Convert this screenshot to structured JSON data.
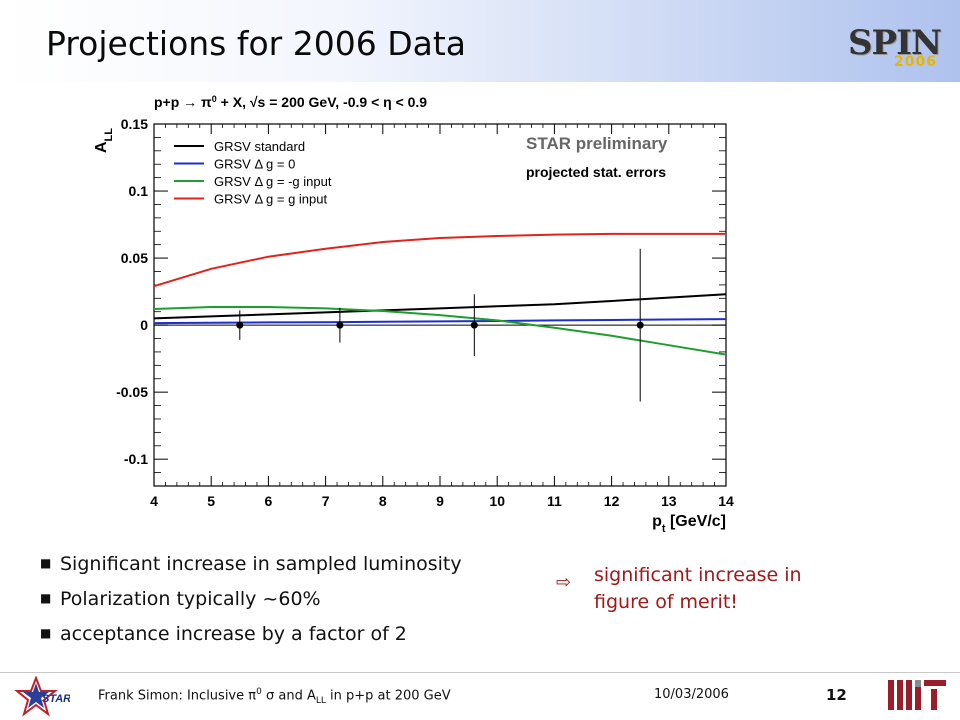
{
  "slide": {
    "title": "Projections for 2006 Data",
    "logo": {
      "word": "SPIN",
      "year": "2006"
    }
  },
  "chart_data": {
    "type": "line",
    "title": "p+p → π0 + X, √s = 200 GeV, -0.9 < η < 0.9",
    "xlabel": "pt [GeV/c]",
    "ylabel": "ALL",
    "xlim": [
      4,
      14
    ],
    "ylim": [
      -0.12,
      0.15
    ],
    "xticks": [
      "4",
      "5",
      "6",
      "7",
      "8",
      "9",
      "10",
      "11",
      "12",
      "13",
      "14"
    ],
    "yticks": [
      "-0.1",
      "-0.05",
      "0",
      "0.05",
      "0.1",
      "0.15"
    ],
    "annotations": [
      "STAR preliminary",
      "projected stat. errors"
    ],
    "legend_position": "top-left",
    "series": [
      {
        "name": "GRSV standard",
        "color": "#000000",
        "x": [
          4,
          5,
          6,
          7,
          8,
          9,
          10,
          11,
          12,
          13,
          14
        ],
        "y": [
          0.005,
          0.0065,
          0.008,
          0.0095,
          0.011,
          0.0125,
          0.014,
          0.0155,
          0.018,
          0.0205,
          0.023
        ]
      },
      {
        "name": "GRSV Δ g = 0",
        "color": "#1d2fc9",
        "x": [
          4,
          5,
          6,
          7,
          8,
          9,
          10,
          11,
          12,
          13,
          14
        ],
        "y": [
          0.0015,
          0.0017,
          0.002,
          0.0022,
          0.0025,
          0.0028,
          0.0031,
          0.0035,
          0.0038,
          0.0042,
          0.0045
        ]
      },
      {
        "name": "GRSV Δ g = -g input",
        "color": "#1e9e2e",
        "x": [
          4,
          5,
          6,
          7,
          8,
          9,
          10,
          11,
          12,
          13,
          14
        ],
        "y": [
          0.012,
          0.0135,
          0.0135,
          0.0125,
          0.0105,
          0.0075,
          0.0035,
          -0.002,
          -0.008,
          -0.015,
          -0.022
        ]
      },
      {
        "name": "GRSV Δ g = g input",
        "color": "#e0241a",
        "x": [
          4,
          5,
          6,
          7,
          8,
          9,
          10,
          11,
          12,
          13,
          14
        ],
        "y": [
          0.029,
          0.042,
          0.051,
          0.057,
          0.062,
          0.065,
          0.0665,
          0.0675,
          0.068,
          0.068,
          0.068
        ]
      }
    ],
    "points": [
      {
        "x": 5.5,
        "y": 0.0,
        "err": 0.011
      },
      {
        "x": 7.25,
        "y": 0.0,
        "err": 0.013
      },
      {
        "x": 9.6,
        "y": 0.0,
        "err": 0.023
      },
      {
        "x": 12.5,
        "y": 0.0,
        "err": 0.057
      }
    ]
  },
  "bullets": [
    "Significant increase in sampled luminosity",
    "Polarization typically ~60%",
    "acceptance increase by a factor of 2"
  ],
  "conclusion": {
    "line1": "significant increase in",
    "line2": "figure of merit!"
  },
  "footer": {
    "author": "Frank Simon: Inclusive",
    "pi": "π",
    "pi_sup": "0",
    "sigma": "σ",
    "and": "and A",
    "all_sub": "LL",
    "tail": "in p+p at 200 GeV",
    "date": "10/03/2006",
    "page": "12",
    "star_label": "STAR"
  }
}
